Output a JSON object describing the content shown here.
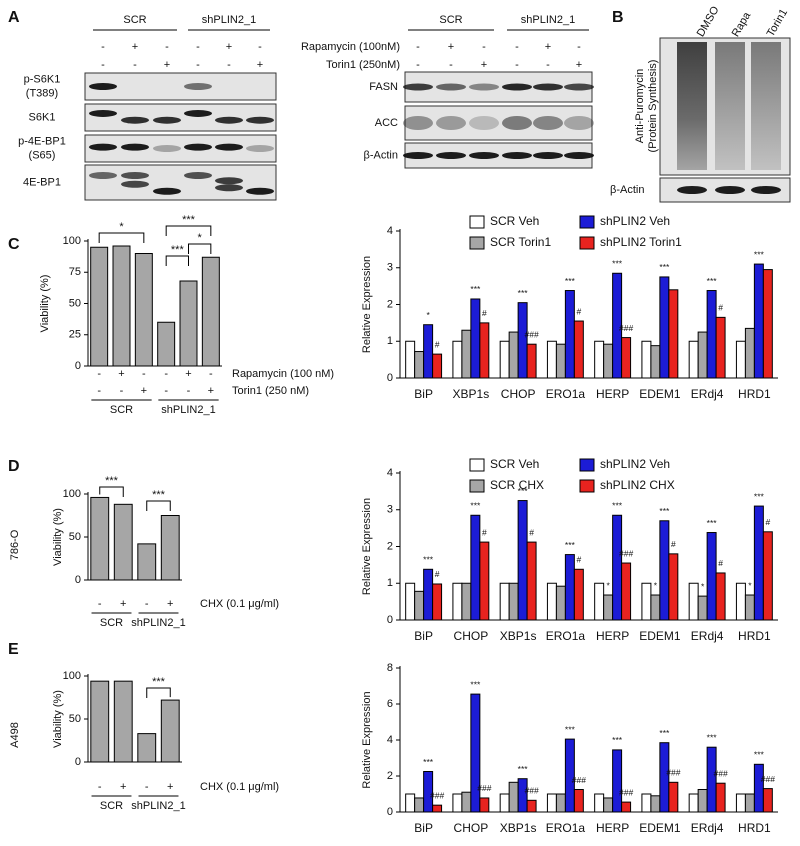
{
  "panel_A": {
    "letter": "A",
    "groups": [
      "SCR",
      "shPLIN2_1"
    ],
    "treatments": [
      {
        "name": "Rapamycin (100nM)",
        "signs": [
          "-",
          "+",
          "-",
          "-",
          "+",
          "-"
        ]
      },
      {
        "name": "Torin1 (250nM)",
        "signs": [
          "-",
          "-",
          "+",
          "-",
          "-",
          "+"
        ]
      }
    ],
    "left_rows": [
      [
        "p-S6K1",
        "(T389)"
      ],
      [
        "S6K1"
      ],
      [
        "p-4E-BP1",
        "(S65)"
      ],
      [
        "4E-BP1"
      ]
    ],
    "right_rows": [
      "FASN",
      "ACC",
      "β-Actin"
    ]
  },
  "panel_B": {
    "letter": "B",
    "lanes": [
      "DMSO",
      "Rapa",
      "Torin1"
    ],
    "ylabel": [
      "Anti-Puromycin",
      "(Protein Synthesis)"
    ],
    "loading": "β-Actin"
  },
  "chart_data": [
    {
      "type": "bar",
      "panel": "C",
      "ylabel": "Viability (%)",
      "categories": [
        null,
        null,
        null,
        null,
        null,
        null
      ],
      "values": [
        95,
        96,
        90,
        35,
        68,
        87
      ],
      "color": "#a6a6a6",
      "ylim": [
        0,
        100
      ],
      "yticks": [
        0,
        25,
        50,
        75,
        100
      ],
      "treatments": [
        {
          "name": "Rapamycin (100 nM)",
          "signs": [
            "-",
            "+",
            "-",
            "-",
            "+",
            "-"
          ]
        },
        {
          "name": "Torin1 (250 nM)",
          "signs": [
            "-",
            "-",
            "+",
            "-",
            "-",
            "+"
          ]
        }
      ],
      "groups": [
        "SCR",
        "shPLIN2_1"
      ],
      "significance": [
        "*",
        "***",
        "***",
        "*"
      ]
    },
    {
      "type": "grouped-bar",
      "ylabel": "Relative Expression",
      "categories": [
        "BiP",
        "XBP1s",
        "CHOP",
        "ERO1a",
        "HERP",
        "EDEM1",
        "ERdj4",
        "HRD1"
      ],
      "ylim": [
        0,
        4
      ],
      "yticks": [
        0,
        1,
        2,
        3,
        4
      ],
      "series": [
        {
          "name": "SCR Veh",
          "color": "#ffffff",
          "values": [
            1.0,
            1.0,
            1.0,
            1.0,
            1.0,
            1.0,
            1.0,
            1.0
          ],
          "annotations": [
            null,
            null,
            null,
            null,
            null,
            null,
            null,
            null
          ]
        },
        {
          "name": "SCR Torin1",
          "color": "#a6a6a6",
          "values": [
            0.72,
            1.3,
            1.25,
            0.92,
            0.92,
            0.88,
            1.25,
            1.35
          ],
          "annotations": [
            null,
            null,
            null,
            null,
            null,
            null,
            null,
            null
          ]
        },
        {
          "name": "shPLIN2 Veh",
          "color": "#1c1cd6",
          "values": [
            1.45,
            2.15,
            2.05,
            2.38,
            2.85,
            2.75,
            2.38,
            3.1
          ],
          "annotations": [
            "*",
            "***",
            "***",
            "***",
            "***",
            "***",
            "***",
            "***"
          ]
        },
        {
          "name": "shPLIN2 Torin1",
          "color": "#e8231f",
          "values": [
            0.65,
            1.5,
            0.92,
            1.55,
            1.1,
            2.4,
            1.65,
            2.95
          ],
          "annotations": [
            "#",
            "#",
            "###",
            "#",
            "###",
            null,
            "#",
            null
          ]
        }
      ]
    },
    {
      "type": "bar",
      "panel": "D",
      "side_label": "786-O",
      "ylabel": "Viability (%)",
      "categories": [
        null,
        null,
        null,
        null
      ],
      "values": [
        96,
        88,
        42,
        75
      ],
      "color": "#a6a6a6",
      "ylim": [
        0,
        100
      ],
      "yticks": [
        0,
        50,
        100
      ],
      "treatments": [
        {
          "name": "CHX (0.1 μg/ml)",
          "signs": [
            "-",
            "+",
            "-",
            "+"
          ]
        }
      ],
      "groups": [
        "SCR",
        "shPLIN2_1"
      ],
      "significance": [
        "***",
        "***"
      ]
    },
    {
      "type": "grouped-bar",
      "ylabel": "Relative Expression",
      "categories": [
        "BiP",
        "CHOP",
        "XBP1s",
        "ERO1a",
        "HERP",
        "EDEM1",
        "ERdj4",
        "HRD1"
      ],
      "ylim": [
        0,
        4
      ],
      "yticks": [
        0,
        1,
        2,
        3,
        4
      ],
      "series": [
        {
          "name": "SCR Veh",
          "color": "#ffffff",
          "values": [
            1.0,
            1.0,
            1.0,
            1.0,
            1.0,
            1.0,
            1.0,
            1.0
          ],
          "annotations": [
            null,
            null,
            null,
            null,
            null,
            null,
            null,
            null
          ]
        },
        {
          "name": "SCR CHX",
          "color": "#a6a6a6",
          "values": [
            0.78,
            1.0,
            1.0,
            0.92,
            0.68,
            0.68,
            0.65,
            0.68
          ],
          "annotations": [
            null,
            null,
            null,
            null,
            "*",
            "*",
            "*",
            "*"
          ]
        },
        {
          "name": "shPLIN2 Veh",
          "color": "#1c1cd6",
          "values": [
            1.38,
            2.85,
            3.25,
            1.78,
            2.85,
            2.7,
            2.38,
            3.1
          ],
          "annotations": [
            "***",
            "***",
            "***",
            "***",
            "***",
            "***",
            "***",
            "***"
          ]
        },
        {
          "name": "shPLIN2 CHX",
          "color": "#e8231f",
          "values": [
            0.98,
            2.12,
            2.12,
            1.38,
            1.55,
            1.8,
            1.28,
            2.4
          ],
          "annotations": [
            "#",
            "#",
            "#",
            "#",
            "###",
            "#",
            "#",
            "#"
          ]
        }
      ]
    },
    {
      "type": "bar",
      "panel": "E",
      "side_label": "A498",
      "ylabel": "Viability (%)",
      "categories": [
        null,
        null,
        null,
        null
      ],
      "values": [
        94,
        94,
        33,
        72
      ],
      "color": "#a6a6a6",
      "ylim": [
        0,
        100
      ],
      "yticks": [
        0,
        50,
        100
      ],
      "treatments": [
        {
          "name": "CHX (0.1 μg/ml)",
          "signs": [
            "-",
            "+",
            "-",
            "+"
          ]
        }
      ],
      "groups": [
        "SCR",
        "shPLIN2_1"
      ],
      "significance": [
        "***"
      ]
    },
    {
      "type": "grouped-bar",
      "ylabel": "Relative Expression",
      "categories": [
        "BiP",
        "CHOP",
        "XBP1s",
        "ERO1a",
        "HERP",
        "EDEM1",
        "ERdj4",
        "HRD1"
      ],
      "ylim": [
        0,
        8
      ],
      "yticks": [
        0,
        2,
        4,
        6,
        8
      ],
      "series": [
        {
          "color": "#ffffff",
          "values": [
            1.0,
            1.0,
            1.0,
            1.0,
            1.0,
            1.0,
            1.0,
            1.0
          ],
          "annotations": [
            null,
            null,
            null,
            null,
            null,
            null,
            null,
            null
          ]
        },
        {
          "color": "#a6a6a6",
          "values": [
            0.78,
            1.1,
            1.65,
            1.0,
            0.78,
            0.9,
            1.25,
            1.0
          ],
          "annotations": [
            null,
            null,
            null,
            null,
            null,
            null,
            null,
            null
          ]
        },
        {
          "color": "#1c1cd6",
          "values": [
            2.25,
            6.55,
            1.85,
            4.05,
            3.45,
            3.85,
            3.6,
            2.65
          ],
          "annotations": [
            "***",
            "***",
            "***",
            "***",
            "***",
            "***",
            "***",
            "***"
          ]
        },
        {
          "color": "#e8231f",
          "values": [
            0.38,
            0.78,
            0.65,
            1.25,
            0.55,
            1.65,
            1.6,
            1.3
          ],
          "annotations": [
            "###",
            "###",
            "###",
            "###",
            "###",
            "###",
            "###",
            "###"
          ]
        }
      ]
    }
  ]
}
